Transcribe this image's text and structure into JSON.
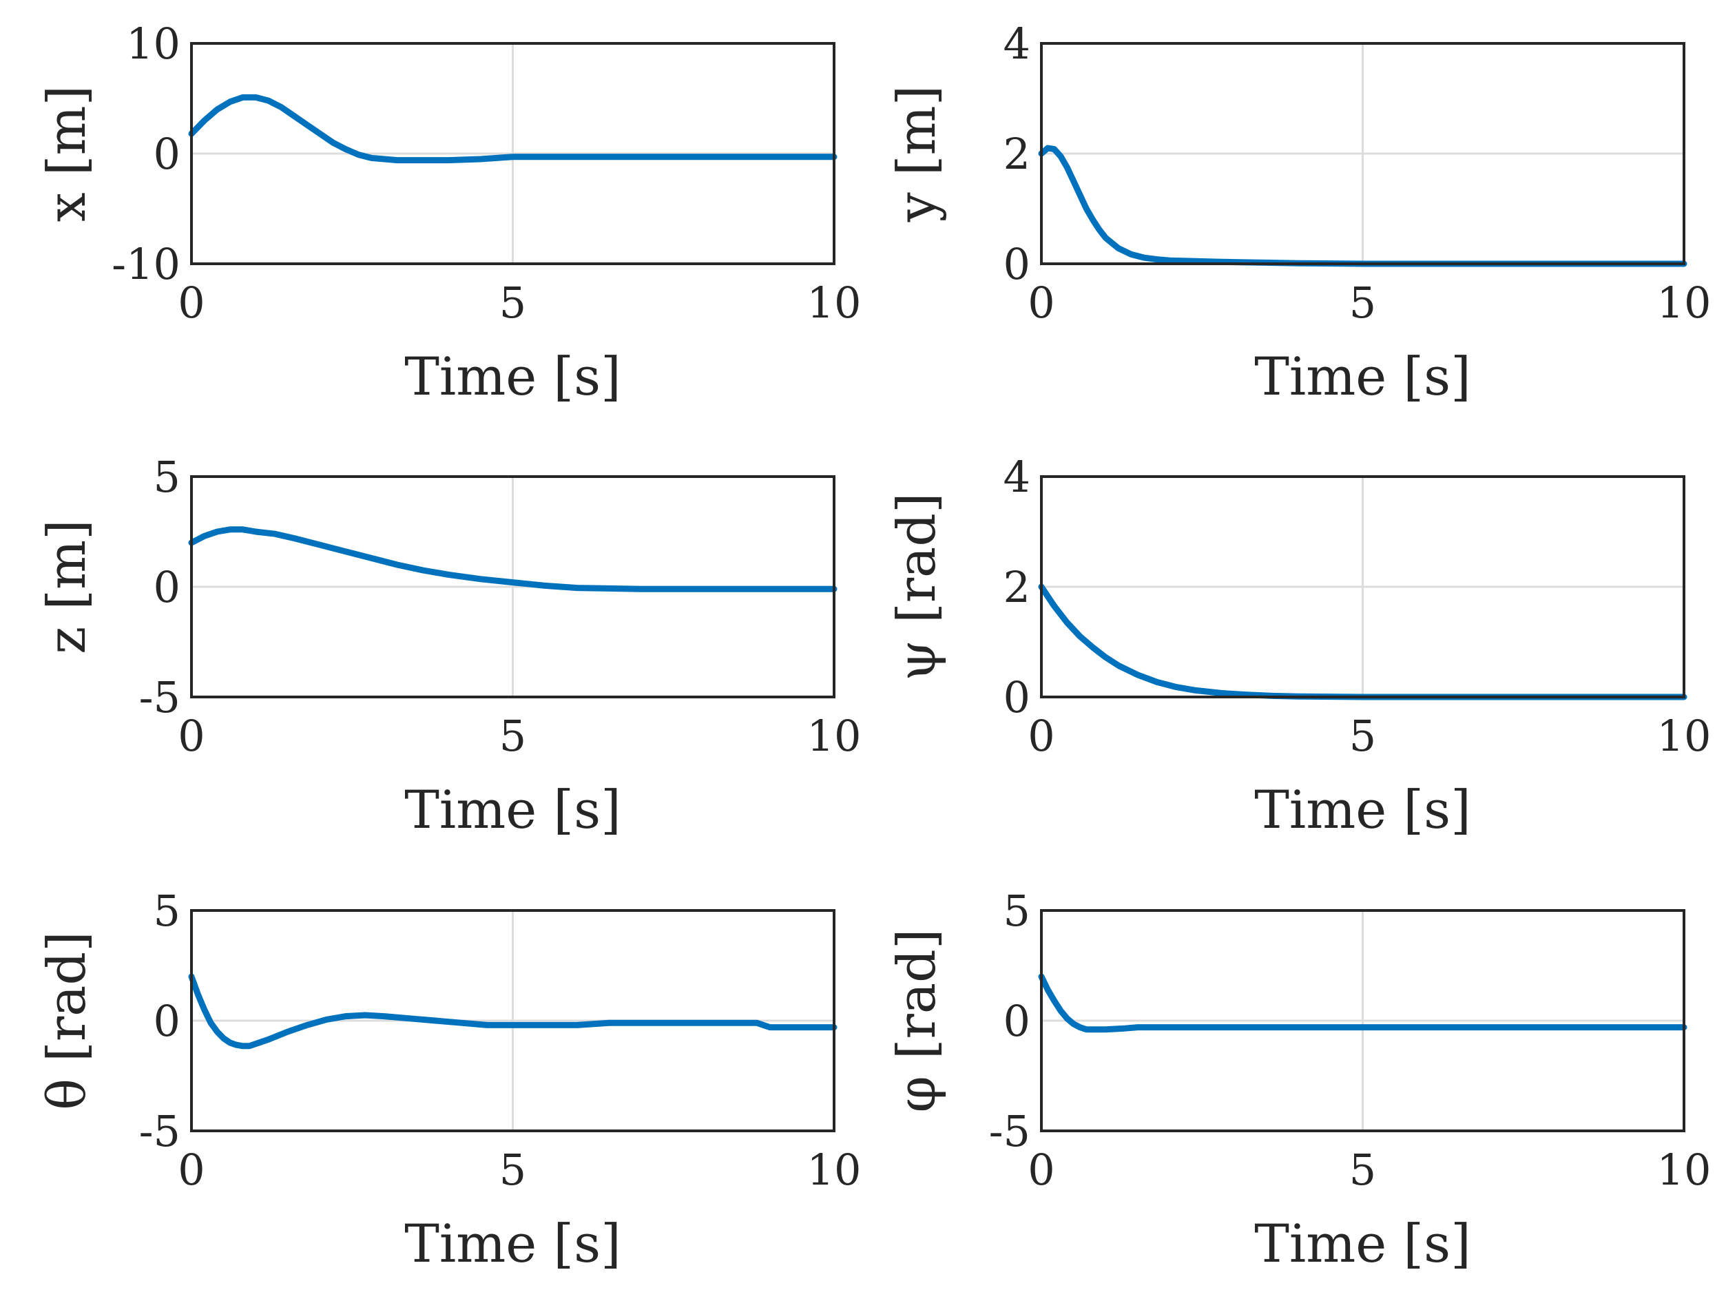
{
  "colors": {
    "series": "#0072BD",
    "axes": "#262626",
    "grid": "#dcdcdc",
    "text": "#262626"
  },
  "chart_data": [
    {
      "type": "line",
      "id": "x",
      "title": "",
      "xlabel": "Time [s]",
      "ylabel": "x [m]",
      "xlim": [
        0,
        10
      ],
      "ylim": [
        -10,
        10
      ],
      "xticks": [
        0,
        5,
        10
      ],
      "yticks": [
        -10,
        0,
        10
      ],
      "xtick_labels": [
        "0",
        "5",
        "10"
      ],
      "ytick_labels": [
        "-10",
        "0",
        "10"
      ],
      "grid": true,
      "series": [
        {
          "name": "x",
          "x": [
            0,
            0.2,
            0.4,
            0.6,
            0.8,
            1.0,
            1.2,
            1.4,
            1.6,
            1.8,
            2.0,
            2.2,
            2.4,
            2.6,
            2.8,
            3.0,
            3.2,
            3.6,
            4.0,
            4.5,
            5.0,
            6.0,
            7.0,
            8.0,
            9.0,
            10.0
          ],
          "y": [
            1.8,
            3.0,
            4.0,
            4.7,
            5.1,
            5.1,
            4.8,
            4.2,
            3.4,
            2.6,
            1.8,
            1.0,
            0.4,
            -0.1,
            -0.4,
            -0.5,
            -0.6,
            -0.6,
            -0.6,
            -0.5,
            -0.3,
            -0.3,
            -0.3,
            -0.3,
            -0.3,
            -0.3
          ]
        }
      ]
    },
    {
      "type": "line",
      "id": "y",
      "title": "",
      "xlabel": "Time [s]",
      "ylabel": "y [m]",
      "xlim": [
        0,
        10
      ],
      "ylim": [
        0,
        4
      ],
      "xticks": [
        0,
        5,
        10
      ],
      "yticks": [
        0,
        2,
        4
      ],
      "xtick_labels": [
        "0",
        "5",
        "10"
      ],
      "ytick_labels": [
        "0",
        "2",
        "4"
      ],
      "grid": true,
      "series": [
        {
          "name": "y",
          "x": [
            0,
            0.1,
            0.2,
            0.3,
            0.4,
            0.5,
            0.6,
            0.7,
            0.8,
            0.9,
            1.0,
            1.2,
            1.4,
            1.6,
            1.8,
            2.0,
            2.3,
            2.6,
            3.0,
            3.5,
            4.0,
            5.0,
            6.0,
            7.0,
            8.0,
            10.0
          ],
          "y": [
            2.0,
            2.1,
            2.08,
            1.95,
            1.75,
            1.5,
            1.25,
            1.0,
            0.8,
            0.62,
            0.47,
            0.28,
            0.17,
            0.11,
            0.08,
            0.06,
            0.05,
            0.04,
            0.03,
            0.02,
            0.01,
            0.0,
            0.0,
            0.0,
            0.0,
            0.0
          ]
        }
      ]
    },
    {
      "type": "line",
      "id": "z",
      "title": "",
      "xlabel": "Time [s]",
      "ylabel": "z [m]",
      "xlim": [
        0,
        10
      ],
      "ylim": [
        -5,
        5
      ],
      "xticks": [
        0,
        5,
        10
      ],
      "yticks": [
        -5,
        0,
        5
      ],
      "xtick_labels": [
        "0",
        "5",
        "10"
      ],
      "ytick_labels": [
        "-5",
        "0",
        "5"
      ],
      "grid": true,
      "series": [
        {
          "name": "z",
          "x": [
            0,
            0.2,
            0.4,
            0.6,
            0.8,
            1.0,
            1.3,
            1.6,
            2.0,
            2.4,
            2.8,
            3.2,
            3.6,
            4.0,
            4.5,
            5.0,
            5.5,
            6.0,
            7.0,
            8.0,
            9.0,
            10.0
          ],
          "y": [
            2.0,
            2.3,
            2.5,
            2.6,
            2.6,
            2.5,
            2.4,
            2.2,
            1.9,
            1.6,
            1.3,
            1.0,
            0.75,
            0.55,
            0.35,
            0.2,
            0.05,
            -0.05,
            -0.1,
            -0.1,
            -0.1,
            -0.1
          ]
        }
      ]
    },
    {
      "type": "line",
      "id": "psi",
      "title": "",
      "xlabel": "Time [s]",
      "ylabel": "ψ [rad]",
      "xlim": [
        0,
        10
      ],
      "ylim": [
        0,
        4
      ],
      "xticks": [
        0,
        5,
        10
      ],
      "yticks": [
        0,
        2,
        4
      ],
      "xtick_labels": [
        "0",
        "5",
        "10"
      ],
      "ytick_labels": [
        "0",
        "2",
        "4"
      ],
      "grid": true,
      "series": [
        {
          "name": "ψ",
          "x": [
            0,
            0.2,
            0.4,
            0.6,
            0.8,
            1.0,
            1.2,
            1.5,
            1.8,
            2.1,
            2.4,
            2.8,
            3.2,
            3.6,
            4.0,
            5.0,
            6.0,
            8.0,
            10.0
          ],
          "y": [
            2.0,
            1.65,
            1.35,
            1.1,
            0.9,
            0.72,
            0.57,
            0.4,
            0.27,
            0.18,
            0.12,
            0.07,
            0.04,
            0.02,
            0.01,
            0.0,
            0.0,
            0.0,
            0.0
          ]
        }
      ]
    },
    {
      "type": "line",
      "id": "theta",
      "title": "",
      "xlabel": "Time [s]",
      "ylabel": "θ [rad]",
      "xlim": [
        0,
        10
      ],
      "ylim": [
        -5,
        5
      ],
      "xticks": [
        0,
        5,
        10
      ],
      "yticks": [
        -5,
        0,
        5
      ],
      "xtick_labels": [
        "0",
        "5",
        "10"
      ],
      "ytick_labels": [
        "-5",
        "0",
        "5"
      ],
      "grid": true,
      "series": [
        {
          "name": "θ",
          "x": [
            0,
            0.1,
            0.2,
            0.3,
            0.4,
            0.5,
            0.6,
            0.7,
            0.8,
            0.9,
            1.0,
            1.2,
            1.5,
            1.8,
            2.1,
            2.4,
            2.7,
            3.0,
            3.4,
            3.8,
            4.2,
            4.6,
            5.0,
            6.0,
            6.5,
            7.0,
            8.0,
            8.8,
            9.0,
            10.0
          ],
          "y": [
            2.0,
            1.2,
            0.5,
            -0.1,
            -0.5,
            -0.8,
            -1.0,
            -1.1,
            -1.15,
            -1.15,
            -1.05,
            -0.85,
            -0.5,
            -0.2,
            0.05,
            0.2,
            0.25,
            0.2,
            0.1,
            0.0,
            -0.1,
            -0.2,
            -0.2,
            -0.2,
            -0.1,
            -0.1,
            -0.1,
            -0.1,
            -0.3,
            -0.3
          ]
        }
      ]
    },
    {
      "type": "line",
      "id": "phi",
      "title": "",
      "xlabel": "Time [s]",
      "ylabel": "φ [rad]",
      "xlim": [
        0,
        10
      ],
      "ylim": [
        -5,
        5
      ],
      "xticks": [
        0,
        5,
        10
      ],
      "yticks": [
        -5,
        0,
        5
      ],
      "xtick_labels": [
        "0",
        "5",
        "10"
      ],
      "ytick_labels": [
        "-5",
        "0",
        "5"
      ],
      "grid": true,
      "series": [
        {
          "name": "φ",
          "x": [
            0,
            0.1,
            0.2,
            0.3,
            0.4,
            0.5,
            0.6,
            0.7,
            0.8,
            1.0,
            1.3,
            1.5,
            2.0,
            3.0,
            5.0,
            7.0,
            10.0
          ],
          "y": [
            2.0,
            1.4,
            0.9,
            0.45,
            0.1,
            -0.15,
            -0.3,
            -0.4,
            -0.4,
            -0.4,
            -0.35,
            -0.3,
            -0.3,
            -0.3,
            -0.3,
            -0.3,
            -0.3
          ]
        }
      ]
    }
  ]
}
